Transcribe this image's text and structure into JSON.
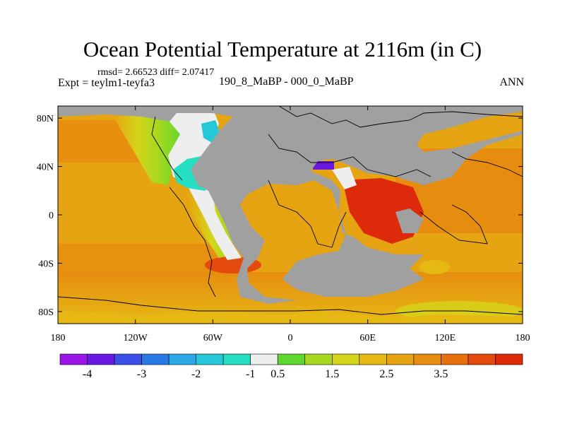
{
  "title": "Ocean Potential Temperature at 2116m (in C)",
  "stats_line": "rmsd= 2.66523 diff= 2.07417",
  "expt_line": "Expt = teylm1-teyfa3",
  "subtitle": "190_8_MaBP - 000_0_MaBP",
  "season": "ANN",
  "lat_ticks": [
    {
      "label": "80N",
      "lat": 80
    },
    {
      "label": "40N",
      "lat": 40
    },
    {
      "label": "0",
      "lat": 0
    },
    {
      "label": "40S",
      "lat": -40
    },
    {
      "label": "80S",
      "lat": -80
    }
  ],
  "lon_ticks": [
    {
      "label": "180",
      "lon": -180
    },
    {
      "label": "120W",
      "lon": -120
    },
    {
      "label": "60W",
      "lon": -60
    },
    {
      "label": "0",
      "lon": 0
    },
    {
      "label": "60E",
      "lon": 60
    },
    {
      "label": "120E",
      "lon": 120
    },
    {
      "label": "180",
      "lon": 180
    }
  ],
  "colorbar": {
    "colors": [
      "#9a15e6",
      "#6a19e0",
      "#3a4fe6",
      "#2a7ae6",
      "#2aa8e8",
      "#25c8d8",
      "#25dfc3",
      "#eeeeee",
      "#5fd730",
      "#a5d81e",
      "#d6d41a",
      "#e5b814",
      "#e6a312",
      "#e68d10",
      "#e6700e",
      "#e34a0c",
      "#dd2a0a"
    ],
    "labels": [
      {
        "text": "-4",
        "at_boundary": 1
      },
      {
        "text": "-3",
        "at_boundary": 3
      },
      {
        "text": "-2",
        "at_boundary": 5
      },
      {
        "text": "-1",
        "at_boundary": 7
      },
      {
        "text": "0.5",
        "at_boundary": 8
      },
      {
        "text": "1.5",
        "at_boundary": 10
      },
      {
        "text": "2.5",
        "at_boundary": 12
      },
      {
        "text": "3.5",
        "at_boundary": 14
      }
    ]
  },
  "map_colors": {
    "land": "#a0a0a0",
    "ocean_base": "#e6a312"
  }
}
